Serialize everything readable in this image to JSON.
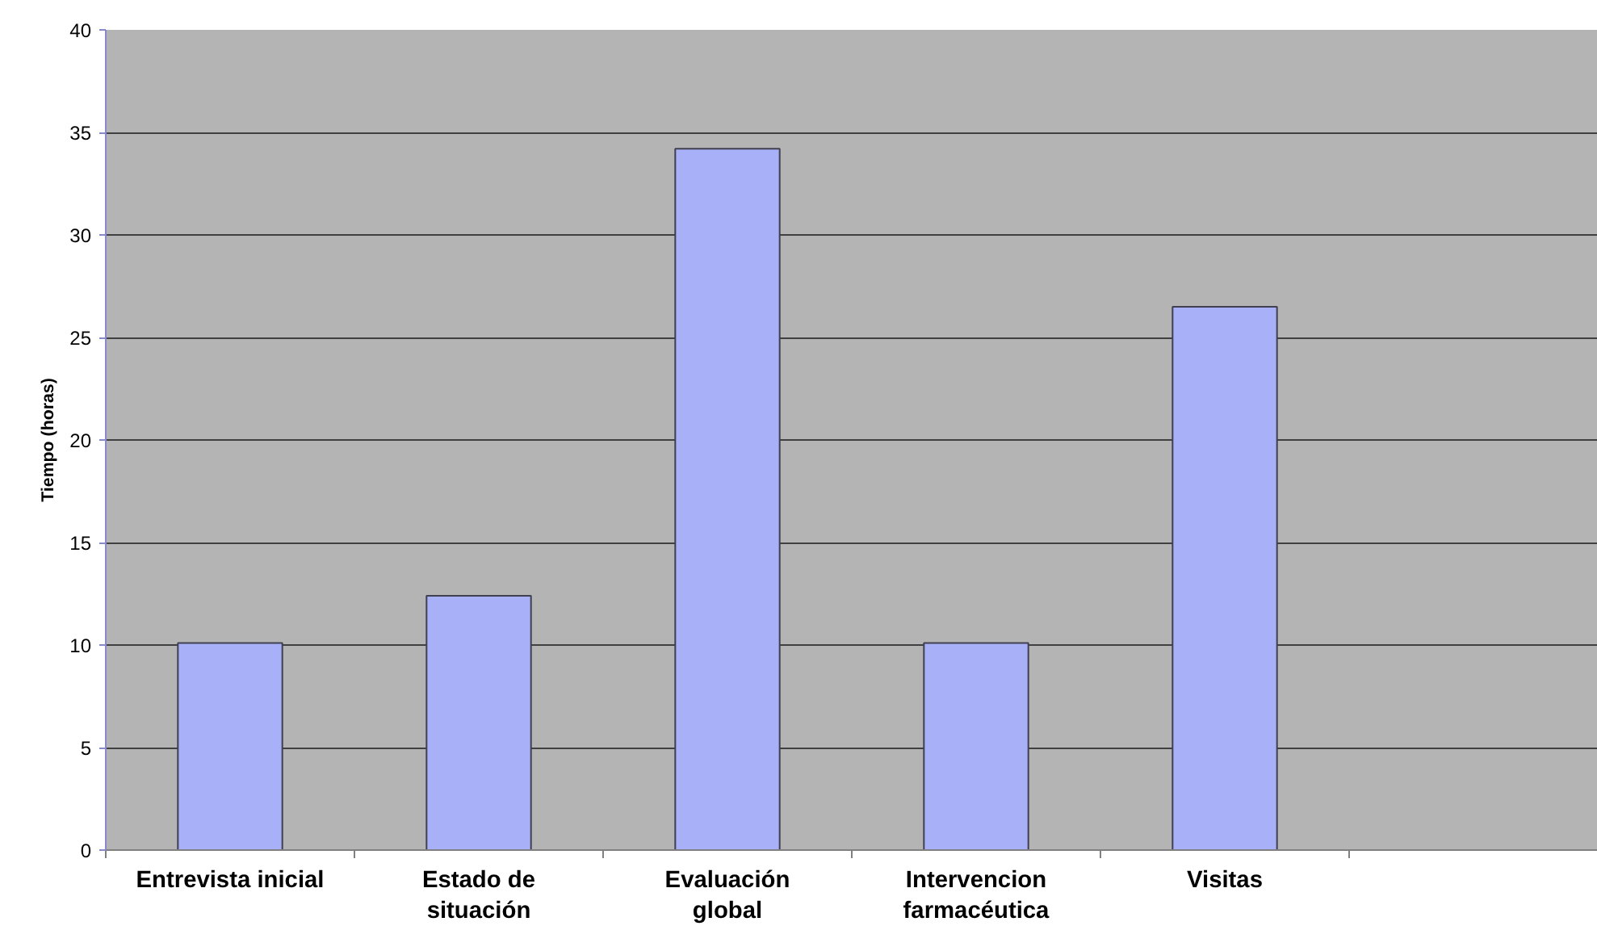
{
  "chart_data": {
    "type": "bar",
    "ylabel": "Tiempo (horas)",
    "categories": [
      "Entrevista inicial",
      "Estado de\nsituación",
      "Evaluación\nglobal",
      "Intervencion\nfarmacéutica",
      "Visitas",
      null
    ],
    "values": [
      10.1,
      12.4,
      34.2,
      10.1,
      26.5,
      null
    ],
    "color": "#a8b0f8",
    "ylim": [
      0,
      40
    ],
    "yticks": [
      0,
      5,
      10,
      15,
      20,
      25,
      30,
      35,
      40
    ],
    "grid": "y"
  }
}
